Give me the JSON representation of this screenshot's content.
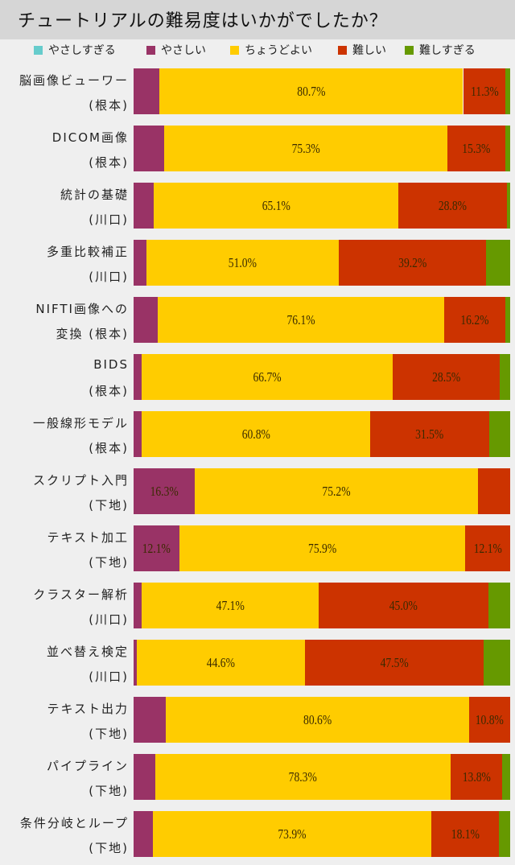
{
  "chart_data": {
    "type": "bar",
    "orientation": "horizontal-stacked-100",
    "title": "チュートリアルの難易度はいかがでしたか？",
    "legend": [
      "やさしすぎる",
      "やさしい",
      "ちょうどよい",
      "難しい",
      "難しすぎる"
    ],
    "legend_position": "top",
    "colors": [
      "#66cccc",
      "#993366",
      "#ffcc00",
      "#cc3300",
      "#669900"
    ],
    "xlim": [
      0,
      100
    ],
    "categories": [
      {
        "line1": "脳画像ビューワー",
        "line2": "(根本)"
      },
      {
        "line1": "DICOM画像",
        "line2": "(根本)"
      },
      {
        "line1": "統計の基礎",
        "line2": "(川口)"
      },
      {
        "line1": "多重比較補正",
        "line2": "(川口)"
      },
      {
        "line1": "NIFTI画像への",
        "line2": "変換 (根本)"
      },
      {
        "line1": "BIDS",
        "line2": "(根本)"
      },
      {
        "line1": "一般線形モデル",
        "line2": "(根本)"
      },
      {
        "line1": "スクリプト入門",
        "line2": "(下地)"
      },
      {
        "line1": "テキスト加工",
        "line2": "(下地)"
      },
      {
        "line1": "クラスター解析",
        "line2": "(川口)"
      },
      {
        "line1": "並べ替え検定",
        "line2": "(川口)"
      },
      {
        "line1": "テキスト出力",
        "line2": "(下地)"
      },
      {
        "line1": "パイプライン",
        "line2": "(下地)"
      },
      {
        "line1": "条件分岐とループ",
        "line2": "(下地)"
      }
    ],
    "series": [
      {
        "name": "やさしすぎる",
        "values": [
          0,
          0,
          0,
          0,
          0,
          0,
          0,
          0,
          0,
          0,
          0,
          0,
          0,
          0
        ]
      },
      {
        "name": "やさしい",
        "values": [
          6.8,
          8.1,
          5.3,
          3.4,
          6.4,
          2.1,
          2.1,
          16.3,
          12.1,
          2.1,
          0.9,
          8.6,
          5.8,
          5.1
        ]
      },
      {
        "name": "ちょうどよい",
        "values": [
          80.7,
          75.3,
          65.1,
          51.0,
          76.1,
          66.7,
          60.8,
          75.2,
          75.9,
          47.1,
          44.6,
          80.6,
          78.3,
          73.9
        ]
      },
      {
        "name": "難しい",
        "values": [
          11.3,
          15.3,
          28.8,
          39.2,
          16.2,
          28.5,
          31.5,
          8.5,
          12.1,
          45.0,
          47.5,
          10.8,
          13.8,
          18.1
        ]
      },
      {
        "name": "難しすぎる",
        "values": [
          1.2,
          1.3,
          0.8,
          6.4,
          1.3,
          2.7,
          5.6,
          0,
          0,
          5.8,
          7.0,
          0,
          2.1,
          2.9
        ]
      }
    ],
    "label_threshold": 10
  }
}
